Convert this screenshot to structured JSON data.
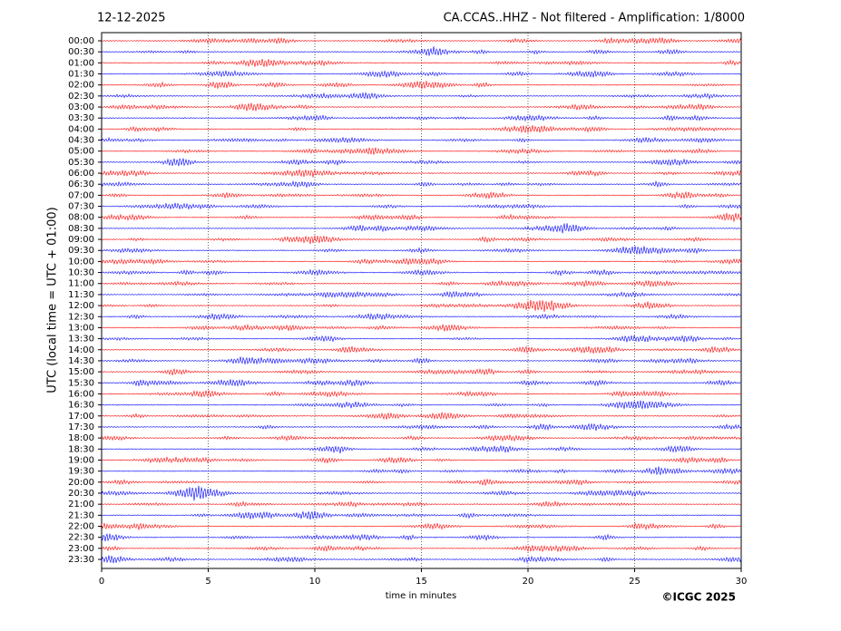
{
  "chart_data": {
    "type": "helicorder",
    "date": "12-12-2025",
    "title": "CA.CCAS..HHZ - Not filtered - Amplification: 1/8000",
    "y_label": "UTC (local time = UTC + 01:00)",
    "x_label": "time in minutes",
    "copyright": "©ICGC 2025",
    "categories": [
      "00:00",
      "00:30",
      "01:00",
      "01:30",
      "02:00",
      "02:30",
      "03:00",
      "03:30",
      "04:00",
      "04:30",
      "05:00",
      "05:30",
      "06:00",
      "06:30",
      "07:00",
      "07:30",
      "08:00",
      "08:30",
      "09:00",
      "09:30",
      "10:00",
      "10:30",
      "11:00",
      "11:30",
      "12:00",
      "12:30",
      "13:00",
      "13:30",
      "14:00",
      "14:30",
      "15:00",
      "15:30",
      "16:00",
      "16:30",
      "17:00",
      "17:30",
      "18:00",
      "18:30",
      "19:00",
      "19:30",
      "20:00",
      "20:30",
      "21:00",
      "21:30",
      "22:00",
      "22:30",
      "23:00",
      "23:30"
    ],
    "trace_colors": [
      "#ff0000",
      "#0000ff"
    ],
    "xlim": [
      0,
      30
    ],
    "xticks": [
      0,
      5,
      10,
      15,
      20,
      25,
      30
    ],
    "grid": true
  }
}
